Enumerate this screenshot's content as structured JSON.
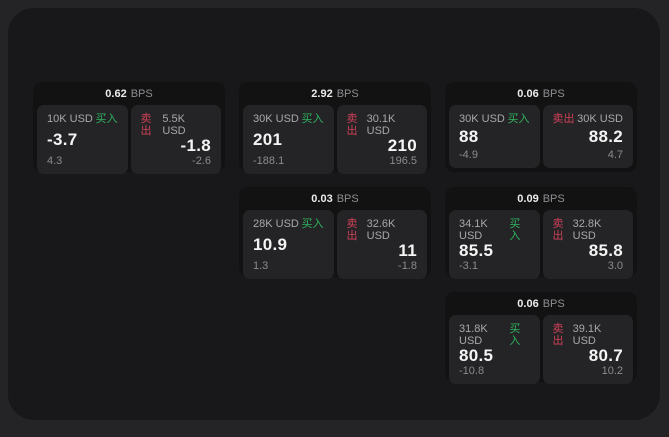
{
  "labels": {
    "buy": "买入",
    "sell": "卖出",
    "bps_unit": "BPS"
  },
  "colors": {
    "buy_green": "#2fb45f",
    "sell_red": "#cf4058",
    "page_background": "#242427",
    "panel_background": "#18181a",
    "card_background": "#121213",
    "tile_background": "#242426"
  },
  "cards": [
    {
      "bps": "0.62",
      "buy": {
        "amount": "10K USD",
        "price": "-3.7",
        "change": "4.3"
      },
      "sell": {
        "amount": "5.5K USD",
        "price": "-1.8",
        "change": "-2.6"
      }
    },
    {
      "bps": "2.92",
      "buy": {
        "amount": "30K USD",
        "price": "201",
        "change": "-188.1"
      },
      "sell": {
        "amount": "30.1K USD",
        "price": "210",
        "change": "196.5"
      }
    },
    {
      "bps": "0.06",
      "buy": {
        "amount": "30K USD",
        "price": "88",
        "change": "-4.9"
      },
      "sell": {
        "amount": "30K USD",
        "price": "88.2",
        "change": "4.7"
      }
    },
    {
      "bps": "0.03",
      "buy": {
        "amount": "28K USD",
        "price": "10.9",
        "change": "1.3"
      },
      "sell": {
        "amount": "32.6K USD",
        "price": "11",
        "change": "-1.8"
      }
    },
    {
      "bps": "0.09",
      "buy": {
        "amount": "34.1K USD",
        "price": "85.5",
        "change": "-3.1"
      },
      "sell": {
        "amount": "32.8K USD",
        "price": "85.8",
        "change": "3.0"
      }
    },
    {
      "bps": "0.06",
      "buy": {
        "amount": "31.8K USD",
        "price": "80.5",
        "change": "-10.8"
      },
      "sell": {
        "amount": "39.1K USD",
        "price": "80.7",
        "change": "10.2"
      }
    }
  ]
}
